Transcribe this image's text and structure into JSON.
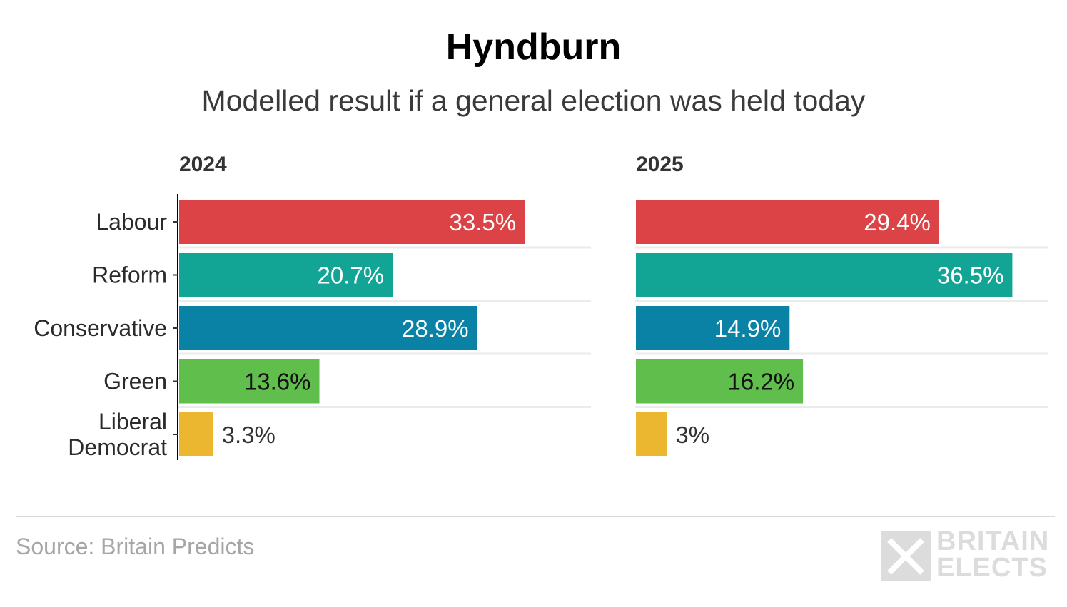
{
  "header": {
    "title": "Hyndburn",
    "subtitle": "Modelled result if a general election was held today"
  },
  "chart_data": {
    "type": "bar",
    "orientation": "horizontal",
    "categories": [
      "Labour",
      "Reform",
      "Conservative",
      "Green",
      "Liberal Democrat"
    ],
    "category_lines": [
      [
        "Labour"
      ],
      [
        "Reform"
      ],
      [
        "Conservative"
      ],
      [
        "Green"
      ],
      [
        "Liberal",
        "Democrat"
      ]
    ],
    "colors": [
      "#db4346",
      "#12a596",
      "#0a82a6",
      "#60bf4c",
      "#ebb731"
    ],
    "label_colors": [
      "#ffffff",
      "#ffffff",
      "#ffffff",
      "#111111",
      "#333333"
    ],
    "xlim": [
      0,
      40
    ],
    "panels": [
      {
        "name": "2024",
        "values": [
          33.5,
          20.7,
          28.9,
          13.6,
          3.3
        ],
        "labels": [
          "33.5%",
          "20.7%",
          "28.9%",
          "13.6%",
          "3.3%"
        ]
      },
      {
        "name": "2025",
        "values": [
          29.4,
          36.5,
          14.9,
          16.2,
          3.0
        ],
        "labels": [
          "29.4%",
          "36.5%",
          "14.9%",
          "16.2%",
          "3%"
        ]
      }
    ]
  },
  "footer": {
    "source": "Source: Britain Predicts",
    "logo_line1": "BRITAIN",
    "logo_line2": "ELECTS"
  }
}
